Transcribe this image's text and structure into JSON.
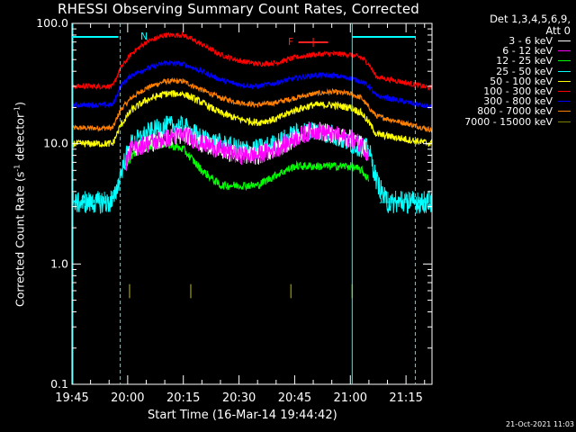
{
  "chart_data": {
    "type": "line",
    "title": "RHESSI Observing Summary Count Rates, Corrected",
    "xlabel": "Start Time (16-Mar-14 19:44:42)",
    "ylabel": "Corrected Count Rate (s",
    "ylabel_sup": "-1",
    "ylabel_tail": " detector",
    "ylabel_sup2": "-1",
    "ylabel_end": ")",
    "yscale": "log",
    "ylim": [
      0.1,
      100
    ],
    "xlim_minutes": [
      0,
      97
    ],
    "x_ticks": [
      {
        "label": "19:45",
        "minute": 0
      },
      {
        "label": "20:00",
        "minute": 15
      },
      {
        "label": "20:15",
        "minute": 30
      },
      {
        "label": "20:30",
        "minute": 45
      },
      {
        "label": "20:45",
        "minute": 60
      },
      {
        "label": "21:00",
        "minute": 75
      },
      {
        "label": "21:15",
        "minute": 90
      }
    ],
    "y_ticks": [
      {
        "label": "0.1",
        "value": 0.1
      },
      {
        "label": "1.0",
        "value": 1
      },
      {
        "label": "10.0",
        "value": 10
      },
      {
        "label": "100.0",
        "value": 100
      }
    ],
    "detectors": "Det 1,3,4,5,6,9,",
    "attenuator": "Att 0",
    "legend_position": "top-right",
    "series": [
      {
        "name": "3 - 6 keV",
        "color": "#ffffff",
        "noise": 0.18,
        "points": [
          [
            14.5,
            7
          ],
          [
            16,
            9
          ],
          [
            20,
            10
          ],
          [
            25,
            11
          ],
          [
            30,
            12
          ],
          [
            35,
            10
          ],
          [
            40,
            9
          ],
          [
            45,
            8
          ],
          [
            50,
            8
          ],
          [
            55,
            9
          ],
          [
            60,
            11
          ],
          [
            65,
            13
          ],
          [
            70,
            12
          ],
          [
            75,
            11
          ],
          [
            78,
            10
          ],
          [
            80,
            8
          ]
        ]
      },
      {
        "name": "6 - 12 keV",
        "color": "#ff00ff",
        "noise": 0.18,
        "points": [
          [
            14.5,
            7
          ],
          [
            16,
            9
          ],
          [
            20,
            10
          ],
          [
            25,
            11
          ],
          [
            30,
            12
          ],
          [
            35,
            10
          ],
          [
            40,
            9
          ],
          [
            45,
            8
          ],
          [
            50,
            8
          ],
          [
            55,
            9
          ],
          [
            60,
            11
          ],
          [
            65,
            13
          ],
          [
            70,
            12
          ],
          [
            75,
            11
          ],
          [
            78,
            10
          ],
          [
            80,
            8
          ]
        ]
      },
      {
        "name": "12 - 25 keV",
        "color": "#00ff00",
        "noise": 0.08,
        "points": [
          [
            14.5,
            6
          ],
          [
            16,
            8
          ],
          [
            20,
            9.5
          ],
          [
            25,
            10
          ],
          [
            30,
            9
          ],
          [
            35,
            6
          ],
          [
            40,
            4.5
          ],
          [
            45,
            4.5
          ],
          [
            50,
            4.5
          ],
          [
            55,
            5.5
          ],
          [
            60,
            6.5
          ],
          [
            65,
            6.5
          ],
          [
            70,
            6.5
          ],
          [
            75,
            6.5
          ],
          [
            78,
            6
          ],
          [
            80,
            5
          ]
        ]
      },
      {
        "name": "25 - 50 keV",
        "color": "#00ffff",
        "noise": 0.2,
        "points": [
          [
            0,
            3.2
          ],
          [
            11,
            3.2
          ],
          [
            14,
            7
          ],
          [
            16,
            10
          ],
          [
            20,
            12
          ],
          [
            25,
            14
          ],
          [
            30,
            14
          ],
          [
            35,
            11
          ],
          [
            40,
            10
          ],
          [
            45,
            9
          ],
          [
            50,
            9
          ],
          [
            55,
            10
          ],
          [
            60,
            12
          ],
          [
            65,
            13
          ],
          [
            70,
            12
          ],
          [
            75,
            10
          ],
          [
            80,
            9
          ],
          [
            82,
            5
          ],
          [
            85,
            3.2
          ],
          [
            97,
            3.2
          ]
        ]
      },
      {
        "name": "50 - 100 keV",
        "color": "#ffff00",
        "noise": 0.07,
        "points": [
          [
            0,
            10
          ],
          [
            11,
            10
          ],
          [
            13,
            14
          ],
          [
            16,
            19
          ],
          [
            20,
            23
          ],
          [
            25,
            26
          ],
          [
            30,
            26
          ],
          [
            35,
            22
          ],
          [
            40,
            18
          ],
          [
            45,
            16
          ],
          [
            50,
            15
          ],
          [
            55,
            16
          ],
          [
            60,
            19
          ],
          [
            65,
            21
          ],
          [
            70,
            21
          ],
          [
            75,
            20
          ],
          [
            78,
            18
          ],
          [
            80,
            15
          ],
          [
            82,
            12
          ],
          [
            97,
            10
          ]
        ]
      },
      {
        "name": "100 - 300 keV",
        "color": "#ff0000",
        "noise": 0.05,
        "points": [
          [
            0,
            30
          ],
          [
            11,
            30
          ],
          [
            13,
            42
          ],
          [
            16,
            56
          ],
          [
            20,
            70
          ],
          [
            25,
            80
          ],
          [
            30,
            80
          ],
          [
            35,
            67
          ],
          [
            40,
            55
          ],
          [
            45,
            49
          ],
          [
            50,
            46
          ],
          [
            55,
            47
          ],
          [
            60,
            52
          ],
          [
            65,
            55
          ],
          [
            70,
            56
          ],
          [
            75,
            55
          ],
          [
            78,
            52
          ],
          [
            80,
            46
          ],
          [
            82,
            36
          ],
          [
            97,
            29
          ]
        ]
      },
      {
        "name": "300 - 800 keV",
        "color": "#0000ff",
        "noise": 0.05,
        "points": [
          [
            0,
            21
          ],
          [
            11,
            21
          ],
          [
            13,
            30
          ],
          [
            16,
            37
          ],
          [
            20,
            42
          ],
          [
            25,
            47
          ],
          [
            30,
            46
          ],
          [
            35,
            40
          ],
          [
            40,
            34
          ],
          [
            45,
            31
          ],
          [
            50,
            30
          ],
          [
            55,
            32
          ],
          [
            60,
            35
          ],
          [
            65,
            37
          ],
          [
            70,
            37
          ],
          [
            75,
            35
          ],
          [
            78,
            33
          ],
          [
            80,
            30
          ],
          [
            82,
            25
          ],
          [
            97,
            20
          ]
        ]
      },
      {
        "name": "800 - 7000 keV",
        "color": "#ff8000",
        "noise": 0.05,
        "points": [
          [
            0,
            13.5
          ],
          [
            11,
            13.5
          ],
          [
            13,
            19
          ],
          [
            16,
            24
          ],
          [
            20,
            29
          ],
          [
            25,
            33
          ],
          [
            30,
            33
          ],
          [
            35,
            28
          ],
          [
            40,
            24
          ],
          [
            45,
            22
          ],
          [
            50,
            21
          ],
          [
            55,
            22
          ],
          [
            60,
            24
          ],
          [
            65,
            26
          ],
          [
            70,
            27
          ],
          [
            75,
            26
          ],
          [
            78,
            24
          ],
          [
            80,
            20
          ],
          [
            82,
            17
          ],
          [
            97,
            13
          ]
        ]
      },
      {
        "name": "7000 - 15000 keV",
        "color": "#808000",
        "noise": 0.0,
        "spikes_only": true,
        "points": [
          [
            15.5,
            0.6
          ],
          [
            32,
            0.6
          ],
          [
            59,
            0.6
          ],
          [
            75.5,
            0.6
          ]
        ]
      }
    ],
    "annotations": [
      {
        "label": "N",
        "color": "#00ffff"
      },
      {
        "label": "F",
        "color": "#ff2020"
      }
    ]
  },
  "footer": {
    "stamp": "21-Oct-2021 11:03"
  }
}
